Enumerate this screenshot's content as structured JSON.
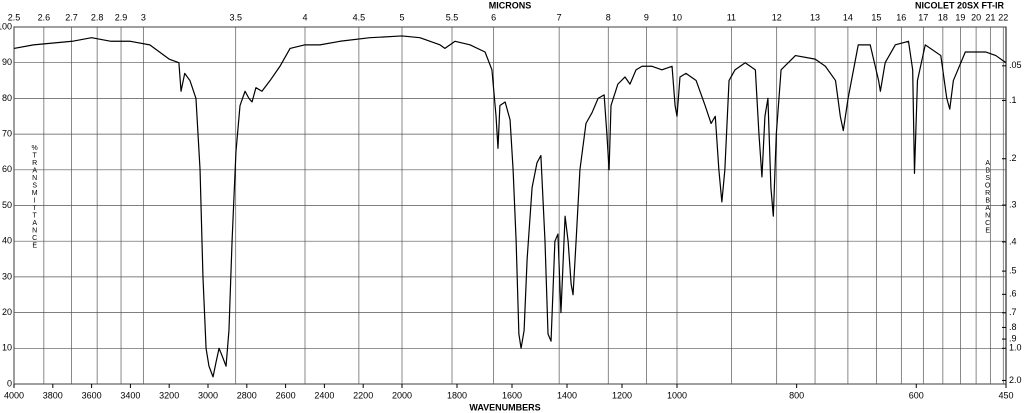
{
  "chart_data": {
    "type": "line",
    "title": "MICRONS",
    "instrument": "NICOLET 20SX FT-IR",
    "x_label": "WAVENUMBERS",
    "y_label": "%TRANSMITTANCE",
    "y2_label": "ABSORBANCE",
    "color": "#000000",
    "grid": true,
    "xlim": [
      4000,
      450
    ],
    "xscale_breaks": [
      2000,
      1000
    ],
    "xticks": [
      4000,
      3800,
      3600,
      3400,
      3200,
      3000,
      2800,
      2600,
      2400,
      2200,
      2000,
      1800,
      1600,
      1400,
      1200,
      1000,
      800,
      600,
      450
    ],
    "top_xticks": [
      2.5,
      2.6,
      2.7,
      2.8,
      2.9,
      3,
      3.5,
      4,
      4.5,
      5,
      5.5,
      6,
      7,
      8,
      9,
      10,
      11,
      12,
      13,
      14,
      15,
      16,
      17,
      18,
      19,
      20,
      21,
      22
    ],
    "ylim": [
      0,
      100
    ],
    "yticks": [
      0,
      10,
      20,
      30,
      40,
      50,
      60,
      70,
      80,
      90,
      100
    ],
    "y2ticks": [
      {
        "value": 0.05,
        "label": ".05"
      },
      {
        "value": 0.1,
        "label": ".1"
      },
      {
        "value": 0.2,
        "label": ".2"
      },
      {
        "value": 0.3,
        "label": ".3"
      },
      {
        "value": 0.4,
        "label": ".4"
      },
      {
        "value": 0.5,
        "label": ".5"
      },
      {
        "value": 0.6,
        "label": ".6"
      },
      {
        "value": 0.7,
        "label": ".7"
      },
      {
        "value": 0.8,
        "label": ".8"
      },
      {
        "value": 0.9,
        "label": ".9"
      },
      {
        "value": 1,
        "label": "1.0"
      },
      {
        "value": 2,
        "label": "2.0"
      }
    ],
    "x": [
      4000,
      3900,
      3700,
      3600,
      3500,
      3400,
      3300,
      3250,
      3200,
      3150,
      3139,
      3120,
      3093,
      3062,
      3041,
      3026,
      3010,
      2995,
      2974,
      2959,
      2943,
      2928,
      2907,
      2892,
      2876,
      2856,
      2835,
      2809,
      2789,
      2773,
      2753,
      2722,
      2680,
      2629,
      2577,
      2500,
      2423,
      2320,
      2165,
      2000,
      1935,
      1862,
      1844,
      1807,
      1753,
      1698,
      1673,
      1658,
      1651,
      1644,
      1625,
      1607,
      1596,
      1585,
      1575,
      1567,
      1556,
      1545,
      1527,
      1509,
      1495,
      1480,
      1469,
      1458,
      1444,
      1433,
      1422,
      1407,
      1396,
      1385,
      1378,
      1367,
      1353,
      1331,
      1309,
      1287,
      1265,
      1255,
      1247,
      1240,
      1215,
      1189,
      1171,
      1149,
      1127,
      1091,
      1055,
      1018,
      1007,
      1000,
      995,
      985,
      968,
      953,
      943,
      936,
      930,
      925,
      920,
      913,
      903,
      886,
      869,
      863,
      858,
      853,
      848,
      843,
      839,
      834,
      826,
      802,
      769,
      752,
      735,
      727,
      722,
      714,
      697,
      677,
      663,
      660,
      652,
      635,
      613,
      606,
      603,
      598,
      585,
      559,
      549,
      544,
      538,
      518,
      484,
      467,
      450
    ],
    "values": [
      94,
      95,
      96,
      97,
      96,
      96,
      95,
      93,
      91,
      90,
      82,
      87,
      85,
      80,
      60,
      30,
      10,
      5,
      2,
      6,
      10,
      8,
      5,
      15,
      40,
      65,
      78,
      82,
      80,
      79,
      83,
      82,
      85,
      89,
      94,
      95,
      95,
      96,
      97,
      97.5,
      97,
      95,
      94,
      96,
      95,
      93,
      88,
      75,
      66,
      78,
      79,
      74,
      60,
      40,
      14,
      10,
      15,
      35,
      55,
      62,
      64,
      40,
      14,
      12,
      40,
      42,
      20,
      47,
      40,
      28,
      25,
      40,
      60,
      73,
      76,
      80,
      81,
      70,
      60,
      78,
      84,
      86,
      84,
      88,
      89,
      89,
      88,
      89,
      78,
      75,
      86,
      87,
      85,
      78,
      73,
      75,
      60,
      51,
      60,
      85,
      88,
      90,
      88,
      70,
      58,
      75,
      80,
      55,
      47,
      70,
      88,
      92,
      91,
      89,
      85,
      75,
      71,
      80,
      95,
      95,
      85,
      82,
      90,
      95,
      96,
      88,
      59,
      85,
      95,
      92,
      80,
      77,
      85,
      93,
      93,
      92,
      90
    ]
  }
}
